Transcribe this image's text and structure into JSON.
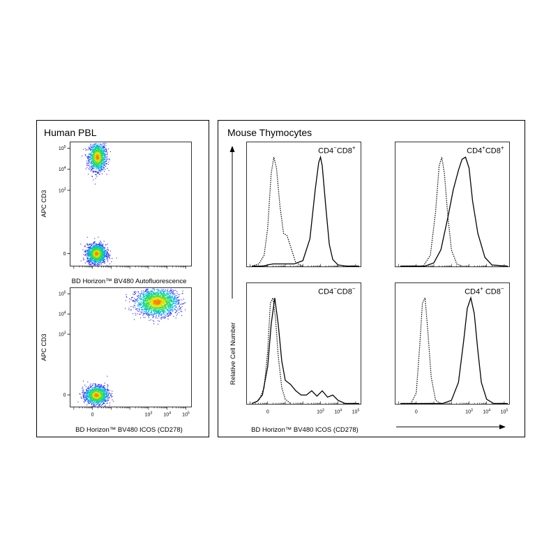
{
  "left_panel": {
    "title": "Human PBL",
    "top_plot": {
      "ylabel": "APC CD3",
      "xlabel": "BD Horizon™ BV480 Autofluorescence"
    },
    "bottom_plot": {
      "ylabel": "APC CD3",
      "xlabel": "BD Horizon™ BV480 ICOS (CD278)"
    }
  },
  "right_panel": {
    "title": "Mouse Thymocytes",
    "ylabel": "Relative Cell Number",
    "xlabel": "BD Horizon™ BV480 ICOS (CD278)"
  },
  "chart_data": [
    {
      "type": "scatter",
      "id": "pbl-autofluorescence",
      "xlabel": "BD Horizon™ BV480 Autofluorescence",
      "ylabel": "APC CD3",
      "xlim": [
        -1.2,
        5.3
      ],
      "ylim": [
        -0.6,
        5.3
      ],
      "x_ticks": [],
      "y_ticks": [
        {
          "value": 5,
          "label": "10",
          "exp": "5"
        },
        {
          "value": 4,
          "label": "10",
          "exp": "4"
        },
        {
          "value": 3,
          "label": "10",
          "exp": "3"
        },
        {
          "value": 0,
          "label": "0",
          "exp": ""
        }
      ],
      "populations": [
        {
          "name": "",
          "cx": 0.25,
          "cy": 4.6,
          "sx": 0.22,
          "sy": 0.32,
          "n": 1500
        },
        {
          "name": "",
          "cx": 0.2,
          "cy": 0.0,
          "sx": 0.25,
          "sy": 0.22,
          "n": 1800
        }
      ],
      "colormap": [
        "#1a1aff",
        "#00a0ff",
        "#00d0a0",
        "#40e040",
        "#e0e000",
        "#ff8000"
      ]
    },
    {
      "type": "scatter",
      "id": "pbl-icos",
      "xlabel": "BD Horizon™ BV480 ICOS (CD278)",
      "ylabel": "APC CD3",
      "xlim": [
        -1.2,
        5.3
      ],
      "ylim": [
        -0.6,
        5.3
      ],
      "x_ticks": [
        {
          "value": 0,
          "label": "0",
          "exp": ""
        },
        {
          "value": 3,
          "label": "10",
          "exp": "3"
        },
        {
          "value": 4,
          "label": "10",
          "exp": "4"
        },
        {
          "value": 5,
          "label": "10",
          "exp": "5"
        }
      ],
      "y_ticks": [
        {
          "value": 5,
          "label": "10",
          "exp": "5"
        },
        {
          "value": 4,
          "label": "10",
          "exp": "4"
        },
        {
          "value": 3,
          "label": "10",
          "exp": "3"
        },
        {
          "value": 0,
          "label": "0",
          "exp": ""
        }
      ],
      "populations": [
        {
          "name": "",
          "cx": 3.45,
          "cy": 4.6,
          "sx": 0.55,
          "sy": 0.32,
          "n": 2200
        },
        {
          "name": "",
          "cx": 0.2,
          "cy": 0.0,
          "sx": 0.3,
          "sy": 0.22,
          "n": 1500
        }
      ],
      "colormap": [
        "#1a1aff",
        "#00a0ff",
        "#00d0a0",
        "#40e040",
        "#e0e000",
        "#ff8000"
      ]
    },
    {
      "type": "line",
      "id": "cd4neg-cd8pos",
      "label": "CD4",
      "label_sup1": "−",
      "label_mid": "CD8",
      "label_sup2": "+",
      "xlim": [
        -1.2,
        5.3
      ],
      "ylim": [
        0,
        1.05
      ],
      "x_ticks": [],
      "series": [
        {
          "name": "",
          "style": "solid",
          "x": [
            -0.9,
            -0.3,
            0.0,
            0.3,
            0.6,
            1.0,
            1.5,
            2.0,
            2.4,
            2.7,
            2.9,
            3.0,
            3.1,
            3.3,
            3.5,
            3.7,
            4.0,
            4.5,
            5.2
          ],
          "y": [
            0.0,
            0.0,
            0.01,
            0.02,
            0.02,
            0.02,
            0.02,
            0.05,
            0.25,
            0.7,
            0.95,
            1.0,
            0.92,
            0.55,
            0.2,
            0.06,
            0.01,
            0.0,
            0.0
          ]
        },
        {
          "name": "",
          "style": "dotted",
          "x": [
            -0.9,
            -0.5,
            -0.2,
            0.0,
            0.2,
            0.35,
            0.5,
            0.7,
            0.9,
            1.1,
            1.3,
            1.6,
            2.0
          ],
          "y": [
            0.0,
            0.02,
            0.1,
            0.35,
            0.85,
            1.0,
            0.9,
            0.55,
            0.3,
            0.28,
            0.18,
            0.03,
            0.0
          ]
        }
      ]
    },
    {
      "type": "line",
      "id": "cd4pos-cd8pos",
      "label": "CD4",
      "label_sup1": "+",
      "label_mid": "CD8",
      "label_sup2": "+",
      "xlim": [
        -1.2,
        5.3
      ],
      "ylim": [
        0,
        1.05
      ],
      "x_ticks": [],
      "series": [
        {
          "name": "",
          "style": "solid",
          "x": [
            -0.9,
            0.5,
            1.0,
            1.4,
            1.8,
            2.1,
            2.4,
            2.6,
            2.8,
            3.0,
            3.2,
            3.5,
            3.9,
            4.3,
            5.2
          ],
          "y": [
            0.0,
            0.0,
            0.03,
            0.15,
            0.45,
            0.7,
            0.88,
            0.98,
            1.0,
            0.9,
            0.6,
            0.3,
            0.08,
            0.01,
            0.0
          ]
        },
        {
          "name": "",
          "style": "dotted",
          "x": [
            -0.9,
            0.4,
            0.8,
            1.1,
            1.3,
            1.45,
            1.6,
            1.8,
            2.0,
            2.3,
            2.6
          ],
          "y": [
            0.0,
            0.0,
            0.1,
            0.5,
            0.92,
            1.0,
            0.85,
            0.45,
            0.15,
            0.02,
            0.0
          ]
        }
      ]
    },
    {
      "type": "line",
      "id": "cd4neg-cd8neg",
      "label": "CD4",
      "label_sup1": "−",
      "label_mid": "CD8",
      "label_sup2": "−",
      "xlim": [
        -1.2,
        5.3
      ],
      "ylim": [
        0,
        1.05
      ],
      "x_ticks": [
        {
          "value": 0,
          "label": "0",
          "exp": ""
        },
        {
          "value": 3,
          "label": "10",
          "exp": "3"
        },
        {
          "value": 4,
          "label": "10",
          "exp": "4"
        },
        {
          "value": 5,
          "label": "10",
          "exp": "5"
        }
      ],
      "series": [
        {
          "name": "",
          "style": "solid",
          "x": [
            -0.9,
            -0.6,
            -0.3,
            0.0,
            0.2,
            0.4,
            0.6,
            0.8,
            1.0,
            1.3,
            1.6,
            1.9,
            2.2,
            2.5,
            2.8,
            3.1,
            3.4,
            3.7,
            4.0,
            4.4,
            5.2
          ],
          "y": [
            0.0,
            0.02,
            0.08,
            0.35,
            0.75,
            1.0,
            0.75,
            0.4,
            0.22,
            0.18,
            0.12,
            0.08,
            0.08,
            0.12,
            0.07,
            0.12,
            0.06,
            0.08,
            0.03,
            0.0,
            0.0
          ]
        },
        {
          "name": "",
          "style": "dotted",
          "x": [
            -0.9,
            -0.5,
            -0.2,
            0.0,
            0.15,
            0.3,
            0.45,
            0.6,
            0.8,
            1.0,
            1.3
          ],
          "y": [
            0.0,
            0.03,
            0.15,
            0.5,
            0.95,
            1.0,
            0.8,
            0.45,
            0.15,
            0.04,
            0.0
          ]
        }
      ]
    },
    {
      "type": "line",
      "id": "cd4pos-cd8neg",
      "label": "CD4",
      "label_sup1": "+",
      "label_mid": " CD8",
      "label_sup2": "−",
      "xlim": [
        -1.2,
        5.3
      ],
      "ylim": [
        0,
        1.05
      ],
      "x_ticks": [
        {
          "value": 0,
          "label": "0",
          "exp": ""
        },
        {
          "value": 3,
          "label": "10",
          "exp": "3"
        },
        {
          "value": 4,
          "label": "10",
          "exp": "4"
        },
        {
          "value": 5,
          "label": "10",
          "exp": "5"
        }
      ],
      "series": [
        {
          "name": "",
          "style": "solid",
          "x": [
            -0.9,
            1.5,
            2.0,
            2.4,
            2.7,
            2.9,
            3.1,
            3.3,
            3.5,
            3.7,
            4.0,
            4.4,
            5.2
          ],
          "y": [
            0.0,
            0.0,
            0.03,
            0.2,
            0.6,
            0.9,
            1.0,
            0.85,
            0.5,
            0.2,
            0.04,
            0.0,
            0.0
          ]
        },
        {
          "name": "",
          "style": "dotted",
          "x": [
            -0.9,
            -0.3,
            0.0,
            0.2,
            0.35,
            0.5,
            0.65,
            0.85,
            1.1,
            1.4
          ],
          "y": [
            0.0,
            0.0,
            0.1,
            0.55,
            0.95,
            1.0,
            0.7,
            0.25,
            0.03,
            0.0
          ]
        }
      ]
    }
  ]
}
